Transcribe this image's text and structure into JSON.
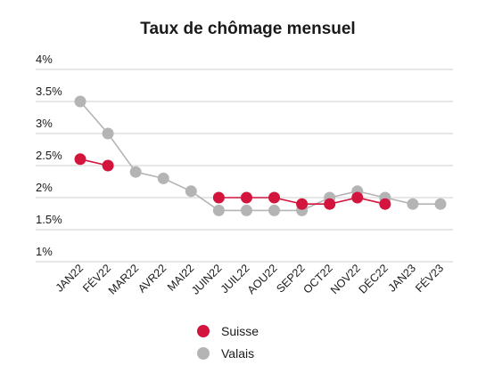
{
  "chart_data": {
    "type": "line",
    "title": "Taux de chômage mensuel",
    "xlabel": "",
    "ylabel": "",
    "categories": [
      "JAN22",
      "FÉV22",
      "MAR22",
      "AVR22",
      "MAI22",
      "JUIN22",
      "JUIL22",
      "AOU22",
      "SEP22",
      "OCT22",
      "NOV22",
      "DÉC22",
      "JAN23",
      "FÉV23"
    ],
    "series": [
      {
        "name": "Suisse",
        "color": "#d3143c",
        "values": [
          2.6,
          2.5,
          null,
          null,
          null,
          2.0,
          2.0,
          2.0,
          1.9,
          1.9,
          2.0,
          1.9,
          null,
          null
        ]
      },
      {
        "name": "Valais",
        "color": "#b4b4b4",
        "values": [
          3.5,
          3.0,
          2.4,
          2.3,
          2.1,
          1.8,
          1.8,
          1.8,
          1.8,
          2.0,
          2.1,
          2.0,
          1.9,
          1.9
        ]
      }
    ],
    "ylim": [
      1,
      4
    ],
    "yticks": [
      "1%",
      "1.5%",
      "2%",
      "2.5%",
      "3%",
      "3.5%",
      "4%"
    ],
    "grid": true,
    "legend": "bottom-center"
  }
}
